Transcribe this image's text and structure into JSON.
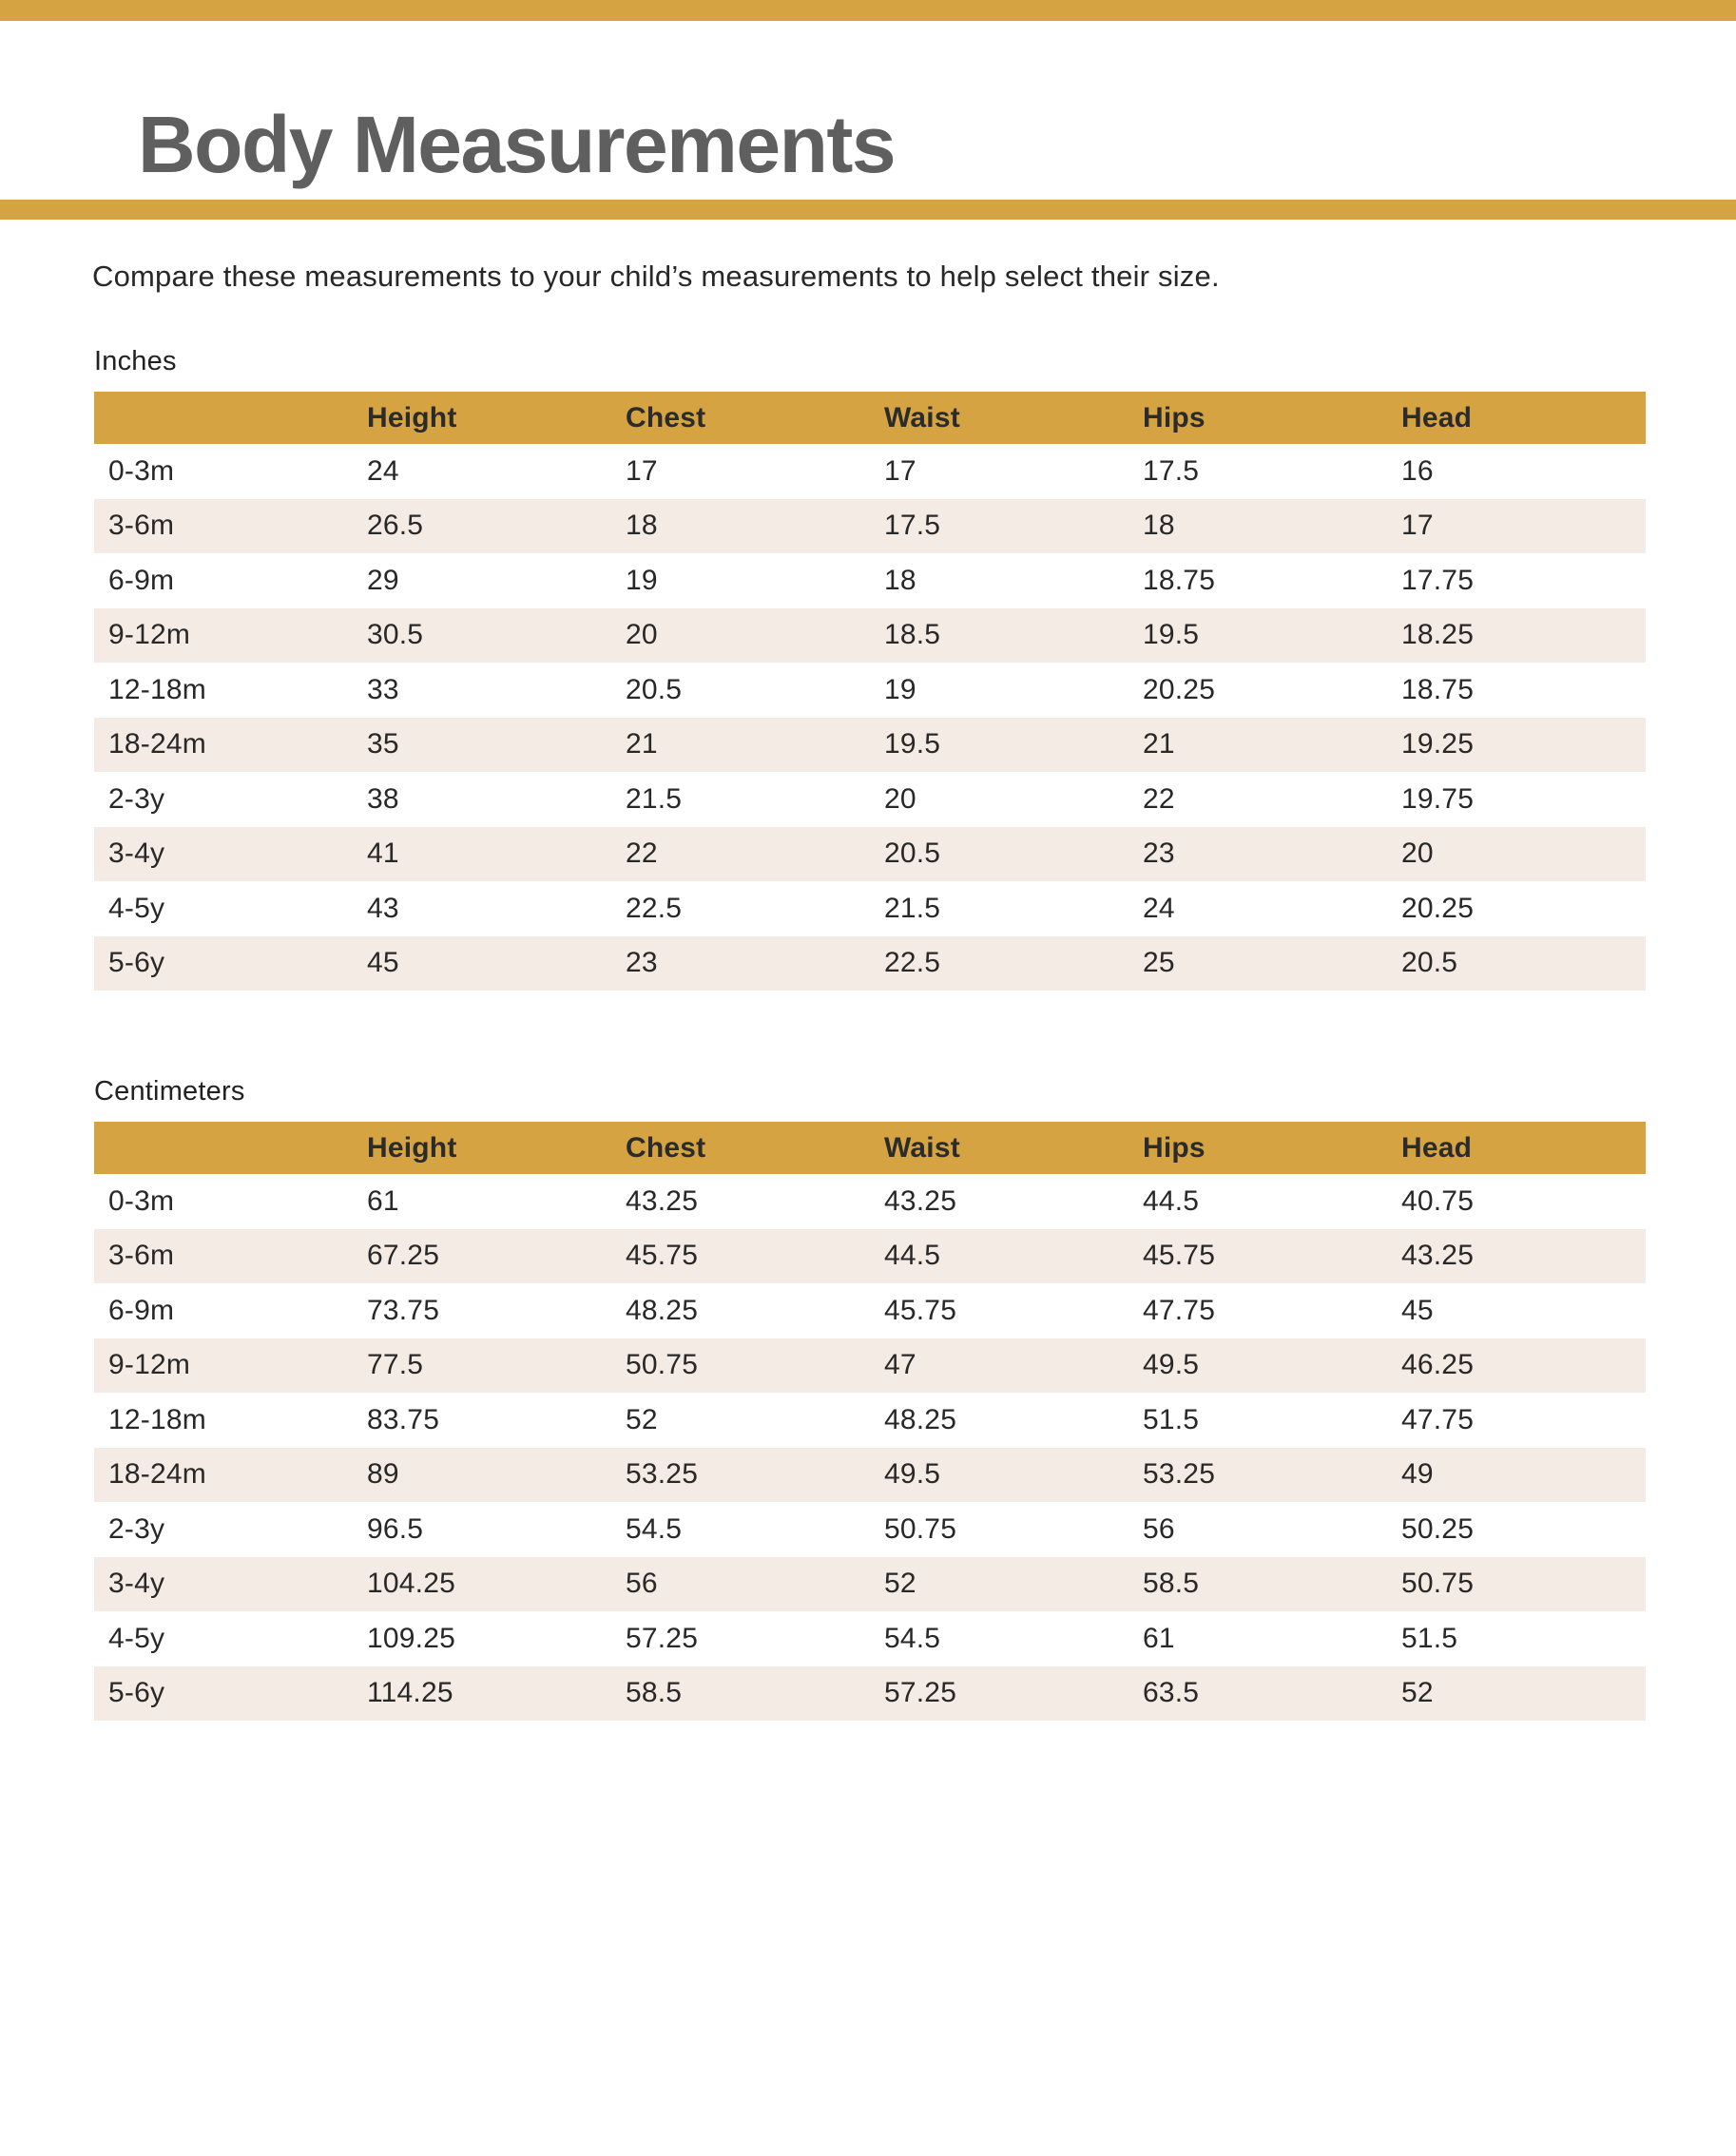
{
  "page": {
    "title": "Body Measurements",
    "description": "Compare these measurements to your child’s measurements to help select their size."
  },
  "colors": {
    "accent_gold": "#D6A342",
    "row_alternate_cream": "#F4EBE4",
    "title_gray": "#5F5F5F",
    "text_dark": "#282828"
  },
  "sections": [
    {
      "label": "Inches",
      "columns": [
        "",
        "Height",
        "Chest",
        "Waist",
        "Hips",
        "Head"
      ],
      "rows": [
        {
          "label": "0-3m",
          "values": [
            "24",
            "17",
            "17",
            "17.5",
            "16"
          ]
        },
        {
          "label": "3-6m",
          "values": [
            "26.5",
            "18",
            "17.5",
            "18",
            "17"
          ]
        },
        {
          "label": "6-9m",
          "values": [
            "29",
            "19",
            "18",
            "18.75",
            "17.75"
          ]
        },
        {
          "label": "9-12m",
          "values": [
            "30.5",
            "20",
            "18.5",
            "19.5",
            "18.25"
          ]
        },
        {
          "label": "12-18m",
          "values": [
            "33",
            "20.5",
            "19",
            "20.25",
            "18.75"
          ]
        },
        {
          "label": "18-24m",
          "values": [
            "35",
            "21",
            "19.5",
            "21",
            "19.25"
          ]
        },
        {
          "label": "2-3y",
          "values": [
            "38",
            "21.5",
            "20",
            "22",
            "19.75"
          ]
        },
        {
          "label": "3-4y",
          "values": [
            "41",
            "22",
            "20.5",
            "23",
            "20"
          ]
        },
        {
          "label": "4-5y",
          "values": [
            "43",
            "22.5",
            "21.5",
            "24",
            "20.25"
          ]
        },
        {
          "label": "5-6y",
          "values": [
            "45",
            "23",
            "22.5",
            "25",
            "20.5"
          ]
        }
      ]
    },
    {
      "label": "Centimeters",
      "columns": [
        "",
        "Height",
        "Chest",
        "Waist",
        "Hips",
        "Head"
      ],
      "rows": [
        {
          "label": "0-3m",
          "values": [
            "61",
            "43.25",
            "43.25",
            "44.5",
            "40.75"
          ]
        },
        {
          "label": "3-6m",
          "values": [
            "67.25",
            "45.75",
            "44.5",
            "45.75",
            "43.25"
          ]
        },
        {
          "label": "6-9m",
          "values": [
            "73.75",
            "48.25",
            "45.75",
            "47.75",
            "45"
          ]
        },
        {
          "label": "9-12m",
          "values": [
            "77.5",
            "50.75",
            "47",
            "49.5",
            "46.25"
          ]
        },
        {
          "label": "12-18m",
          "values": [
            "83.75",
            "52",
            "48.25",
            "51.5",
            "47.75"
          ]
        },
        {
          "label": "18-24m",
          "values": [
            "89",
            "53.25",
            "49.5",
            "53.25",
            "49"
          ]
        },
        {
          "label": "2-3y",
          "values": [
            "96.5",
            "54.5",
            "50.75",
            "56",
            "50.25"
          ]
        },
        {
          "label": "3-4y",
          "values": [
            "104.25",
            "56",
            "52",
            "58.5",
            "50.75"
          ]
        },
        {
          "label": "4-5y",
          "values": [
            "109.25",
            "57.25",
            "54.5",
            "61",
            "51.5"
          ]
        },
        {
          "label": "5-6y",
          "values": [
            "114.25",
            "58.5",
            "57.25",
            "63.5",
            "52"
          ]
        }
      ]
    }
  ]
}
